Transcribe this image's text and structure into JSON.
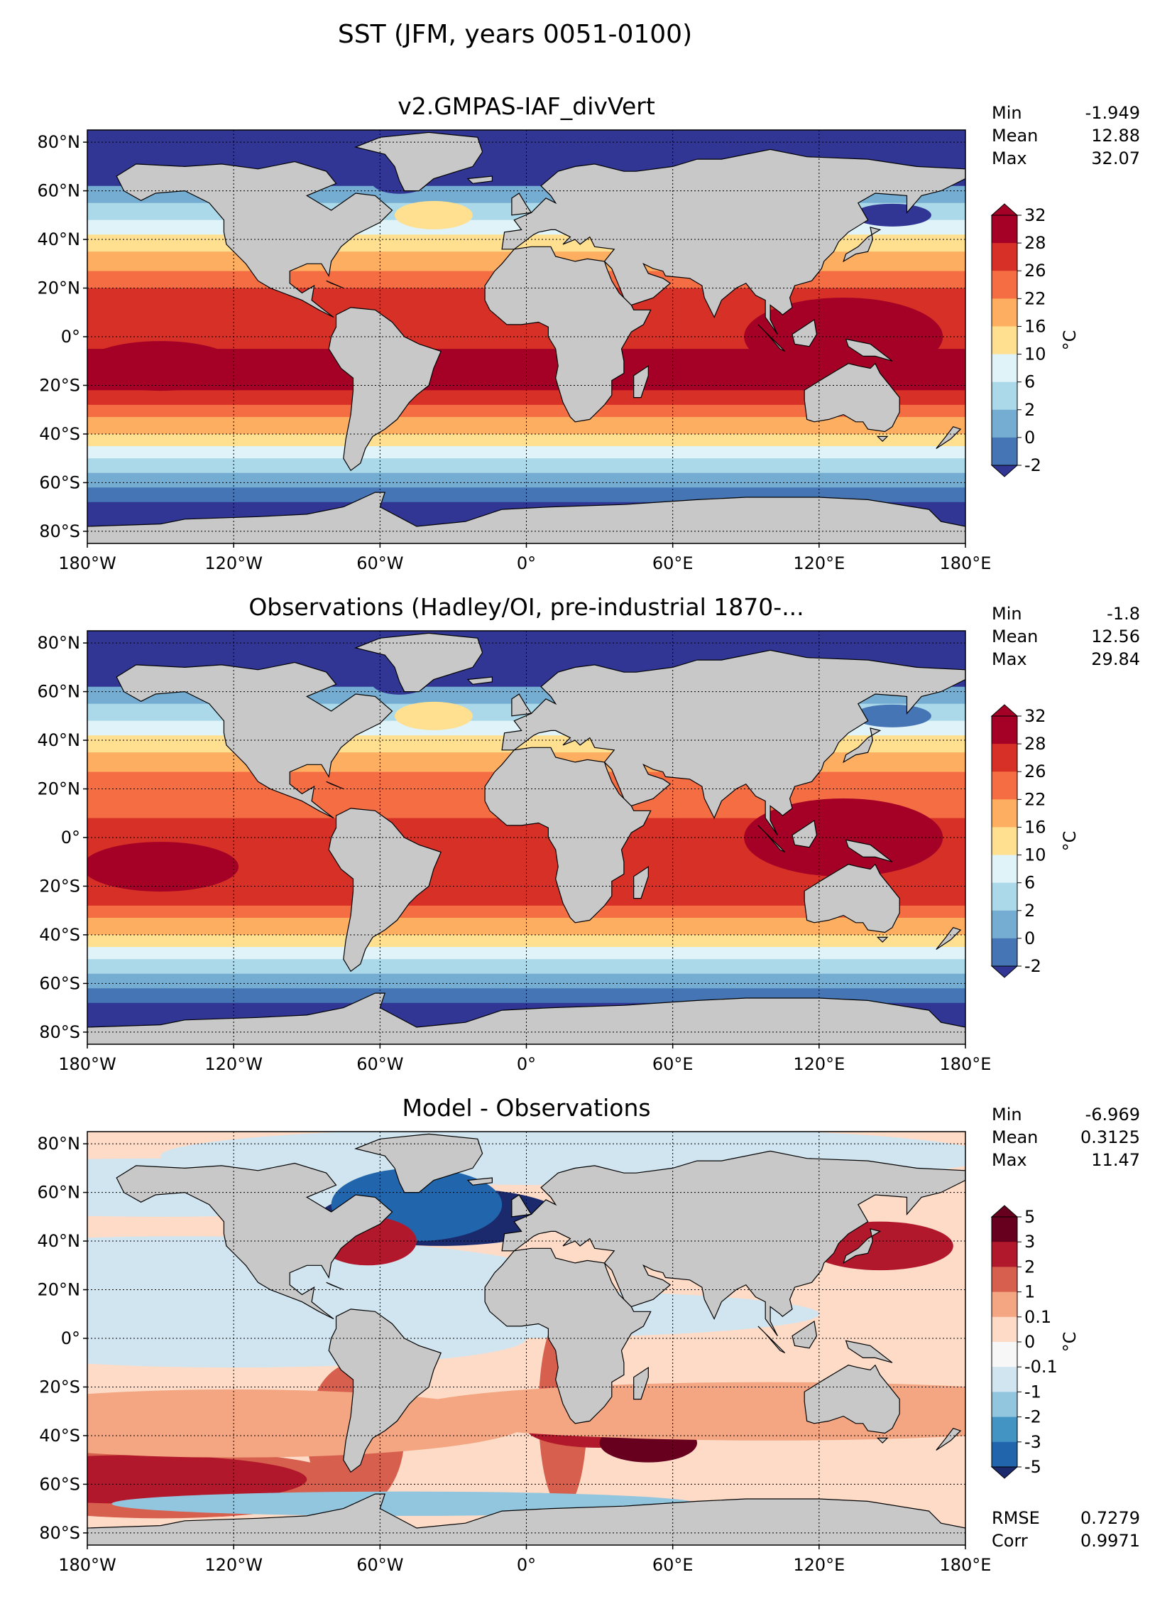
{
  "figure": {
    "title": "SST (JFM, years 0051-0100)"
  },
  "colors": {
    "land": "#c8c8c8",
    "coast": "#000000",
    "sst_levels": [
      "#313695",
      "#4575b4",
      "#74add1",
      "#abd9e9",
      "#e0f3f8",
      "#fee090",
      "#fdae61",
      "#f46d43",
      "#d73027",
      "#a50026"
    ],
    "diff_levels": [
      "#1a2a6c",
      "#2166ac",
      "#4393c3",
      "#92c5de",
      "#d1e5f0",
      "#f7f7f7",
      "#fddbc7",
      "#f4a582",
      "#d6604d",
      "#b2182b",
      "#67001f"
    ]
  },
  "chart_data": [
    {
      "type": "heatmap",
      "title": "v2.GMPAS-IAF_divVert",
      "variable": "SST",
      "x_ticks": [
        "180°W",
        "120°W",
        "60°W",
        "0°",
        "60°E",
        "120°E",
        "180°E"
      ],
      "y_ticks": [
        "80°N",
        "60°N",
        "40°N",
        "20°N",
        "0°",
        "20°S",
        "40°S",
        "60°S",
        "80°S"
      ],
      "xlim": [
        -180,
        180
      ],
      "ylim": [
        -85,
        85
      ],
      "stats": [
        {
          "label": "Min",
          "value": "-1.949"
        },
        {
          "label": "Mean",
          "value": "12.88"
        },
        {
          "label": "Max",
          "value": "32.07"
        }
      ],
      "colorbar": {
        "ticks": [
          "32",
          "28",
          "26",
          "22",
          "16",
          "10",
          "6",
          "2",
          "0",
          "-2"
        ],
        "unit": "°C",
        "extend": "both"
      },
      "grid": true
    },
    {
      "type": "heatmap",
      "title": "Observations (Hadley/OI, pre-industrial 1870-...",
      "variable": "SST",
      "x_ticks": [
        "180°W",
        "120°W",
        "60°W",
        "0°",
        "60°E",
        "120°E",
        "180°E"
      ],
      "y_ticks": [
        "80°N",
        "60°N",
        "40°N",
        "20°N",
        "0°",
        "20°S",
        "40°S",
        "60°S",
        "80°S"
      ],
      "xlim": [
        -180,
        180
      ],
      "ylim": [
        -85,
        85
      ],
      "stats": [
        {
          "label": "Min",
          "value": "-1.8"
        },
        {
          "label": "Mean",
          "value": "12.56"
        },
        {
          "label": "Max",
          "value": "29.84"
        }
      ],
      "colorbar": {
        "ticks": [
          "32",
          "28",
          "26",
          "22",
          "16",
          "10",
          "6",
          "2",
          "0",
          "-2"
        ],
        "unit": "°C",
        "extend": "both"
      },
      "grid": true
    },
    {
      "type": "heatmap",
      "title": "Model - Observations",
      "variable": "SST difference",
      "x_ticks": [
        "180°W",
        "120°W",
        "60°W",
        "0°",
        "60°E",
        "120°E",
        "180°E"
      ],
      "y_ticks": [
        "80°N",
        "60°N",
        "40°N",
        "20°N",
        "0°",
        "20°S",
        "40°S",
        "60°S",
        "80°S"
      ],
      "xlim": [
        -180,
        180
      ],
      "ylim": [
        -85,
        85
      ],
      "stats": [
        {
          "label": "Min",
          "value": "-6.969"
        },
        {
          "label": "Mean",
          "value": "0.3125"
        },
        {
          "label": "Max",
          "value": "11.47"
        }
      ],
      "extra_stats": [
        {
          "label": "RMSE",
          "value": "0.7279"
        },
        {
          "label": "Corr",
          "value": "0.9971"
        }
      ],
      "colorbar": {
        "ticks": [
          "5",
          "3",
          "2",
          "1",
          "0.1",
          "0",
          "-0.1",
          "-1",
          "-2",
          "-3",
          "-5"
        ],
        "unit": "°C",
        "extend": "both"
      },
      "grid": true
    }
  ]
}
